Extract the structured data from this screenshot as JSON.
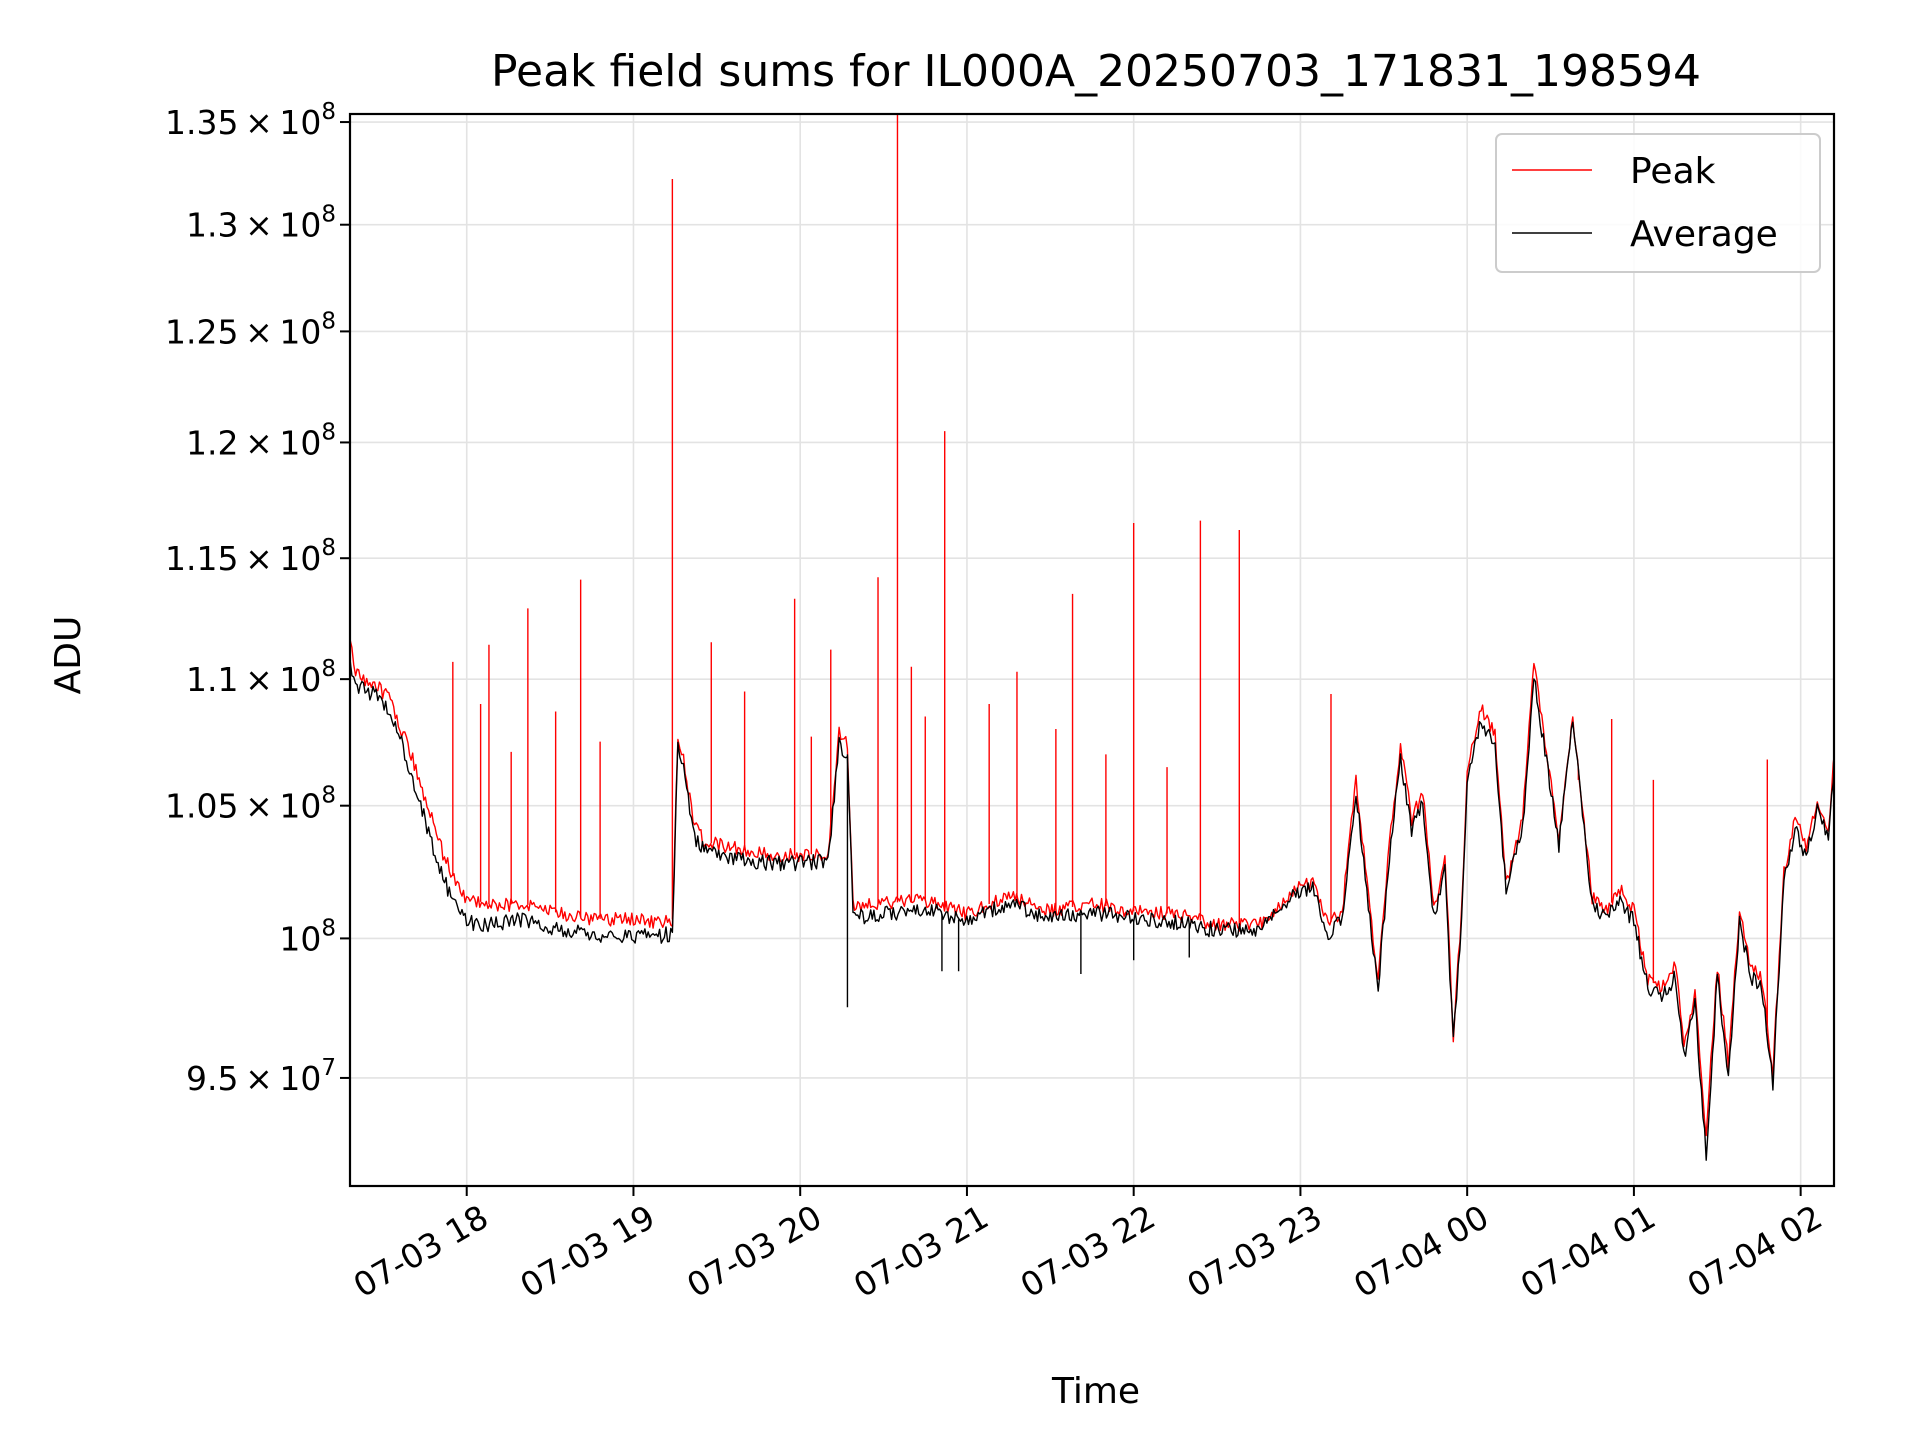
{
  "chart_data": {
    "type": "line",
    "title": "Peak field sums for IL000A_20250703_171831_198594",
    "xlabel": "Time",
    "ylabel": "ADU",
    "y_scale": "log",
    "xlim": [
      "2025-07-03 17:18",
      "2025-07-04 02:12"
    ],
    "ylim": [
      91300000,
      135400000
    ],
    "grid": true,
    "legend_position": "top-right",
    "x_tick_labels": [
      {
        "time": "2025-07-03 18:00",
        "label": "07-03 18"
      },
      {
        "time": "2025-07-03 19:00",
        "label": "07-03 19"
      },
      {
        "time": "2025-07-03 20:00",
        "label": "07-03 20"
      },
      {
        "time": "2025-07-03 21:00",
        "label": "07-03 21"
      },
      {
        "time": "2025-07-03 22:00",
        "label": "07-03 22"
      },
      {
        "time": "2025-07-03 23:00",
        "label": "07-03 23"
      },
      {
        "time": "2025-07-04 00:00",
        "label": "07-04 00"
      },
      {
        "time": "2025-07-04 01:00",
        "label": "07-04 01"
      },
      {
        "time": "2025-07-04 02:00",
        "label": "07-04 02"
      }
    ],
    "y_tick_labels": [
      {
        "value": 95000000,
        "mantissa": "9.5",
        "exp": "7"
      },
      {
        "value": 100000000,
        "mantissa": "",
        "exp": "8"
      },
      {
        "value": 105000000,
        "mantissa": "1.05",
        "exp": "8"
      },
      {
        "value": 110000000,
        "mantissa": "1.1",
        "exp": "8"
      },
      {
        "value": 115000000,
        "mantissa": "1.15",
        "exp": "8"
      },
      {
        "value": 120000000,
        "mantissa": "1.2",
        "exp": "8"
      },
      {
        "value": 125000000,
        "mantissa": "1.25",
        "exp": "8"
      },
      {
        "value": 130000000,
        "mantissa": "1.3",
        "exp": "8"
      },
      {
        "value": 135000000,
        "mantissa": "1.35",
        "exp": "8"
      }
    ],
    "series": [
      {
        "name": "Peak",
        "color": "#ff0000",
        "points": [
          [
            "2025-07-03 17:18",
            111800000
          ],
          [
            "2025-07-03 17:20",
            110200000
          ],
          [
            "2025-07-03 17:24",
            109900000
          ],
          [
            "2025-07-03 17:28",
            109700000
          ],
          [
            "2025-07-03 17:32",
            109200000
          ],
          [
            "2025-07-03 17:36",
            108100000
          ],
          [
            "2025-07-03 17:40",
            107000000
          ],
          [
            "2025-07-03 17:44",
            105600000
          ],
          [
            "2025-07-03 17:48",
            104300000
          ],
          [
            "2025-07-03 17:52",
            103000000
          ],
          [
            "2025-07-03 17:56",
            102100000
          ],
          [
            "2025-07-03 18:00",
            101500000
          ],
          [
            "2025-07-03 18:10",
            101200000
          ],
          [
            "2025-07-03 18:20",
            101300000
          ],
          [
            "2025-07-03 18:30",
            101000000
          ],
          [
            "2025-07-03 18:40",
            100800000
          ],
          [
            "2025-07-03 18:50",
            100700000
          ],
          [
            "2025-07-03 19:00",
            100700000
          ],
          [
            "2025-07-03 19:10",
            100600000
          ],
          [
            "2025-07-03 19:14",
            100700000
          ],
          [
            "2025-07-03 19:16",
            107800000
          ],
          [
            "2025-07-03 19:18",
            106800000
          ],
          [
            "2025-07-03 19:22",
            104200000
          ],
          [
            "2025-07-03 19:26",
            103600000
          ],
          [
            "2025-07-03 19:40",
            103300000
          ],
          [
            "2025-07-03 19:50",
            103100000
          ],
          [
            "2025-07-03 20:00",
            103100000
          ],
          [
            "2025-07-03 20:10",
            103200000
          ],
          [
            "2025-07-03 20:14",
            107800000
          ],
          [
            "2025-07-03 20:17",
            107400000
          ],
          [
            "2025-07-03 20:19",
            101200000
          ],
          [
            "2025-07-03 20:30",
            101300000
          ],
          [
            "2025-07-03 20:45",
            101400000
          ],
          [
            "2025-07-03 21:00",
            100900000
          ],
          [
            "2025-07-03 21:15",
            101600000
          ],
          [
            "2025-07-03 21:30",
            101000000
          ],
          [
            "2025-07-03 21:45",
            101300000
          ],
          [
            "2025-07-03 22:00",
            101000000
          ],
          [
            "2025-07-03 22:15",
            100900000
          ],
          [
            "2025-07-03 22:30",
            100500000
          ],
          [
            "2025-07-03 22:45",
            100500000
          ],
          [
            "2025-07-03 22:55",
            101500000
          ],
          [
            "2025-07-03 23:00",
            102000000
          ],
          [
            "2025-07-03 23:05",
            102000000
          ],
          [
            "2025-07-03 23:10",
            100500000
          ],
          [
            "2025-07-03 23:15",
            101000000
          ],
          [
            "2025-07-03 23:20",
            106000000
          ],
          [
            "2025-07-03 23:25",
            101000000
          ],
          [
            "2025-07-03 23:28",
            98500000
          ],
          [
            "2025-07-03 23:32",
            103500000
          ],
          [
            "2025-07-03 23:36",
            107300000
          ],
          [
            "2025-07-03 23:40",
            104500000
          ],
          [
            "2025-07-03 23:44",
            105500000
          ],
          [
            "2025-07-03 23:48",
            101000000
          ],
          [
            "2025-07-03 23:52",
            103000000
          ],
          [
            "2025-07-03 23:55",
            96500000
          ],
          [
            "2025-07-03 23:58",
            101000000
          ],
          [
            "2025-07-04 00:00",
            106500000
          ],
          [
            "2025-07-04 00:05",
            108800000
          ],
          [
            "2025-07-04 00:10",
            107800000
          ],
          [
            "2025-07-04 00:14",
            102000000
          ],
          [
            "2025-07-04 00:20",
            104500000
          ],
          [
            "2025-07-04 00:24",
            110600000
          ],
          [
            "2025-07-04 00:28",
            107500000
          ],
          [
            "2025-07-04 00:33",
            103800000
          ],
          [
            "2025-07-04 00:38",
            108500000
          ],
          [
            "2025-07-04 00:45",
            101500000
          ],
          [
            "2025-07-04 00:50",
            101000000
          ],
          [
            "2025-07-04 00:55",
            101800000
          ],
          [
            "2025-07-04 01:00",
            101000000
          ],
          [
            "2025-07-04 01:05",
            98500000
          ],
          [
            "2025-07-04 01:10",
            98200000
          ],
          [
            "2025-07-04 01:15",
            99000000
          ],
          [
            "2025-07-04 01:18",
            96000000
          ],
          [
            "2025-07-04 01:22",
            98000000
          ],
          [
            "2025-07-04 01:26",
            93000000
          ],
          [
            "2025-07-04 01:30",
            99000000
          ],
          [
            "2025-07-04 01:34",
            95500000
          ],
          [
            "2025-07-04 01:38",
            101000000
          ],
          [
            "2025-07-04 01:42",
            99000000
          ],
          [
            "2025-07-04 01:46",
            98500000
          ],
          [
            "2025-07-04 01:50",
            95200000
          ],
          [
            "2025-07-04 01:54",
            102500000
          ],
          [
            "2025-07-04 01:58",
            104500000
          ],
          [
            "2025-07-04 02:02",
            103500000
          ],
          [
            "2025-07-04 02:06",
            105300000
          ],
          [
            "2025-07-04 02:10",
            104000000
          ],
          [
            "2025-07-04 02:14",
            109800000
          ],
          [
            "2025-07-04 02:18",
            104500000
          ],
          [
            "2025-07-04 02:22",
            106700000
          ]
        ]
      },
      {
        "name": "Average",
        "color": "#000000",
        "points": [
          [
            "2025-07-03 17:18",
            110600000
          ],
          [
            "2025-07-03 17:20",
            109700000
          ],
          [
            "2025-07-03 17:24",
            109500000
          ],
          [
            "2025-07-03 17:28",
            109300000
          ],
          [
            "2025-07-03 17:32",
            108800000
          ],
          [
            "2025-07-03 17:36",
            107600000
          ],
          [
            "2025-07-03 17:40",
            106300000
          ],
          [
            "2025-07-03 17:44",
            104800000
          ],
          [
            "2025-07-03 17:48",
            103400000
          ],
          [
            "2025-07-03 17:52",
            102100000
          ],
          [
            "2025-07-03 17:56",
            101200000
          ],
          [
            "2025-07-03 18:00",
            100600000
          ],
          [
            "2025-07-03 18:10",
            100500000
          ],
          [
            "2025-07-03 18:20",
            100700000
          ],
          [
            "2025-07-03 18:30",
            100400000
          ],
          [
            "2025-07-03 18:40",
            100200000
          ],
          [
            "2025-07-03 18:50",
            100100000
          ],
          [
            "2025-07-03 19:00",
            100100000
          ],
          [
            "2025-07-03 19:10",
            100100000
          ],
          [
            "2025-07-03 19:14",
            100200000
          ],
          [
            "2025-07-03 19:16",
            107500000
          ],
          [
            "2025-07-03 19:18",
            106400000
          ],
          [
            "2025-07-03 19:22",
            103800000
          ],
          [
            "2025-07-03 19:26",
            103200000
          ],
          [
            "2025-07-03 19:40",
            102900000
          ],
          [
            "2025-07-03 19:50",
            102800000
          ],
          [
            "2025-07-03 20:00",
            102800000
          ],
          [
            "2025-07-03 20:10",
            102900000
          ],
          [
            "2025-07-03 20:14",
            107400000
          ],
          [
            "2025-07-03 20:17",
            107000000
          ],
          [
            "2025-07-03 20:19",
            100800000
          ],
          [
            "2025-07-03 20:30",
            100900000
          ],
          [
            "2025-07-03 20:45",
            101100000
          ],
          [
            "2025-07-03 21:00",
            100600000
          ],
          [
            "2025-07-03 21:15",
            101300000
          ],
          [
            "2025-07-03 21:30",
            100700000
          ],
          [
            "2025-07-03 21:45",
            101000000
          ],
          [
            "2025-07-03 22:00",
            100700000
          ],
          [
            "2025-07-03 22:15",
            100600000
          ],
          [
            "2025-07-03 22:30",
            100300000
          ],
          [
            "2025-07-03 22:45",
            100300000
          ],
          [
            "2025-07-03 22:55",
            101300000
          ],
          [
            "2025-07-03 23:00",
            101800000
          ],
          [
            "2025-07-03 23:05",
            101800000
          ],
          [
            "2025-07-03 23:10",
            100200000
          ],
          [
            "2025-07-03 23:15",
            100700000
          ],
          [
            "2025-07-03 23:20",
            105500000
          ],
          [
            "2025-07-03 23:25",
            100600000
          ],
          [
            "2025-07-03 23:28",
            98200000
          ],
          [
            "2025-07-03 23:32",
            103100000
          ],
          [
            "2025-07-03 23:36",
            106800000
          ],
          [
            "2025-07-03 23:40",
            104100000
          ],
          [
            "2025-07-03 23:44",
            105000000
          ],
          [
            "2025-07-03 23:48",
            100700000
          ],
          [
            "2025-07-03 23:52",
            102600000
          ],
          [
            "2025-07-03 23:55",
            96200000
          ],
          [
            "2025-07-03 23:58",
            100700000
          ],
          [
            "2025-07-04 00:00",
            106000000
          ],
          [
            "2025-07-04 00:05",
            108300000
          ],
          [
            "2025-07-04 00:10",
            107300000
          ],
          [
            "2025-07-04 00:14",
            101700000
          ],
          [
            "2025-07-04 00:20",
            104100000
          ],
          [
            "2025-07-04 00:24",
            110200000
          ],
          [
            "2025-07-04 00:28",
            107100000
          ],
          [
            "2025-07-04 00:33",
            103500000
          ],
          [
            "2025-07-04 00:38",
            108400000
          ],
          [
            "2025-07-04 00:45",
            101200000
          ],
          [
            "2025-07-04 00:50",
            100700000
          ],
          [
            "2025-07-04 00:55",
            101400000
          ],
          [
            "2025-07-04 01:00",
            100600000
          ],
          [
            "2025-07-04 01:05",
            98200000
          ],
          [
            "2025-07-04 01:10",
            97900000
          ],
          [
            "2025-07-04 01:15",
            98600000
          ],
          [
            "2025-07-04 01:18",
            95700000
          ],
          [
            "2025-07-04 01:22",
            97600000
          ],
          [
            "2025-07-04 01:26",
            92300000
          ],
          [
            "2025-07-04 01:30",
            98600000
          ],
          [
            "2025-07-04 01:34",
            95200000
          ],
          [
            "2025-07-04 01:38",
            100600000
          ],
          [
            "2025-07-04 01:42",
            98600000
          ],
          [
            "2025-07-04 01:46",
            98200000
          ],
          [
            "2025-07-04 01:50",
            94800000
          ],
          [
            "2025-07-04 01:54",
            102100000
          ],
          [
            "2025-07-04 01:58",
            104100000
          ],
          [
            "2025-07-04 02:02",
            103100000
          ],
          [
            "2025-07-04 02:06",
            104800000
          ],
          [
            "2025-07-04 02:10",
            103700000
          ],
          [
            "2025-07-04 02:14",
            109200000
          ],
          [
            "2025-07-04 02:18",
            104100000
          ],
          [
            "2025-07-04 02:22",
            105700000
          ]
        ]
      }
    ],
    "peak_spikes": [
      [
        "2025-07-03 17:55",
        110700000
      ],
      [
        "2025-07-03 18:05",
        109000000
      ],
      [
        "2025-07-03 18:08",
        111400000
      ],
      [
        "2025-07-03 18:16",
        107100000
      ],
      [
        "2025-07-03 18:22",
        112900000
      ],
      [
        "2025-07-03 18:32",
        108700000
      ],
      [
        "2025-07-03 18:41",
        114100000
      ],
      [
        "2025-07-03 18:48",
        107500000
      ],
      [
        "2025-07-03 19:14",
        132200000
      ],
      [
        "2025-07-03 19:28",
        111500000
      ],
      [
        "2025-07-03 19:40",
        109500000
      ],
      [
        "2025-07-03 19:58",
        113300000
      ],
      [
        "2025-07-03 20:04",
        107700000
      ],
      [
        "2025-07-03 20:11",
        111200000
      ],
      [
        "2025-07-03 20:28",
        114200000
      ],
      [
        "2025-07-03 20:35",
        135400000
      ],
      [
        "2025-07-03 20:40",
        110500000
      ],
      [
        "2025-07-03 20:45",
        108500000
      ],
      [
        "2025-07-03 20:52",
        120500000
      ],
      [
        "2025-07-03 21:08",
        109000000
      ],
      [
        "2025-07-03 21:18",
        110300000
      ],
      [
        "2025-07-03 21:32",
        108000000
      ],
      [
        "2025-07-03 21:38",
        113500000
      ],
      [
        "2025-07-03 21:50",
        107000000
      ],
      [
        "2025-07-03 22:00",
        116500000
      ],
      [
        "2025-07-03 22:12",
        106500000
      ],
      [
        "2025-07-03 22:24",
        116600000
      ],
      [
        "2025-07-03 22:38",
        116200000
      ],
      [
        "2025-07-03 23:11",
        109400000
      ],
      [
        "2025-07-04 00:40",
        106000000
      ],
      [
        "2025-07-04 00:52",
        108400000
      ],
      [
        "2025-07-04 01:07",
        106000000
      ],
      [
        "2025-07-04 01:48",
        106800000
      ]
    ],
    "average_dips": [
      [
        "2025-07-03 20:17",
        97500000
      ],
      [
        "2025-07-03 20:51",
        98800000
      ],
      [
        "2025-07-03 20:57",
        98800000
      ],
      [
        "2025-07-03 21:41",
        98700000
      ],
      [
        "2025-07-03 22:00",
        99200000
      ],
      [
        "2025-07-03 22:20",
        99300000
      ]
    ]
  }
}
